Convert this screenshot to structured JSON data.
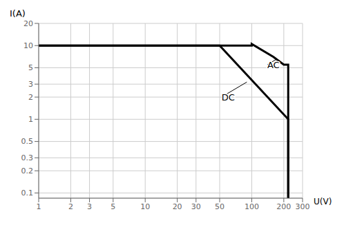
{
  "chart_data": {
    "type": "line",
    "xlabel": "U(V)",
    "ylabel": "I(A)",
    "log": true,
    "grid": true,
    "xlim": [
      1,
      300
    ],
    "ylim": [
      0.085,
      20
    ],
    "xticks": [
      1,
      2,
      3,
      5,
      10,
      20,
      30,
      50,
      100,
      200,
      300
    ],
    "yticks": [
      0.1,
      0.2,
      0.3,
      0.5,
      1,
      2,
      3,
      5,
      10,
      20
    ],
    "series": [
      {
        "x": [
          1,
          50,
          220,
          220
        ],
        "values": [
          10,
          10,
          1,
          0.085
        ],
        "color": "#000000"
      },
      {
        "x": [
          1,
          100,
          100,
          160,
          200,
          220,
          220
        ],
        "values": [
          10,
          10,
          10.5,
          7.0,
          5.5,
          5.5,
          0.085
        ],
        "color": "#000000"
      }
    ],
    "annotations": [
      {
        "text": "DC",
        "xy": [
          90,
          3.2
        ],
        "xytext": [
          52,
          2.0
        ]
      },
      {
        "text": "AC",
        "xy": [
          170,
          6.5
        ],
        "xytext": [
          140,
          5.5
        ]
      }
    ]
  }
}
